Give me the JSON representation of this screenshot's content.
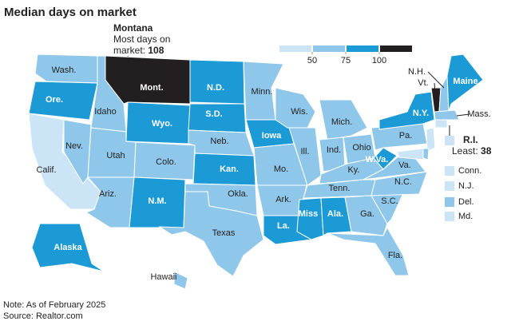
{
  "title": "Median days on market",
  "legend": {
    "breaks": [
      50,
      75,
      100
    ],
    "colors": [
      "#cbe5f6",
      "#8fc7ea",
      "#1b9ad6",
      "#231f20"
    ]
  },
  "most": {
    "state": "Montana",
    "text": [
      "Most days on",
      "market:"
    ],
    "value": 108
  },
  "least": {
    "state": "R.I.",
    "text": "Least:",
    "value": 38
  },
  "states": [
    {
      "label": "Wash.",
      "color": "#8fc7ea"
    },
    {
      "label": "Ore.",
      "color": "#1b9ad6"
    },
    {
      "label": "Calif.",
      "color": "#cbe5f6"
    },
    {
      "label": "Nev.",
      "color": "#8fc7ea"
    },
    {
      "label": "Idaho",
      "color": "#8fc7ea"
    },
    {
      "label": "Mont.",
      "color": "#231f20"
    },
    {
      "label": "Wyo.",
      "color": "#1b9ad6"
    },
    {
      "label": "Utah",
      "color": "#8fc7ea"
    },
    {
      "label": "Ariz.",
      "color": "#8fc7ea"
    },
    {
      "label": "Colo.",
      "color": "#8fc7ea"
    },
    {
      "label": "N.M.",
      "color": "#1b9ad6"
    },
    {
      "label": "N.D.",
      "color": "#1b9ad6"
    },
    {
      "label": "S.D.",
      "color": "#1b9ad6"
    },
    {
      "label": "Neb.",
      "color": "#8fc7ea"
    },
    {
      "label": "Kan.",
      "color": "#1b9ad6"
    },
    {
      "label": "Okla.",
      "color": "#8fc7ea"
    },
    {
      "label": "Texas",
      "color": "#8fc7ea"
    },
    {
      "label": "Minn.",
      "color": "#8fc7ea"
    },
    {
      "label": "Iowa",
      "color": "#1b9ad6"
    },
    {
      "label": "Mo.",
      "color": "#8fc7ea"
    },
    {
      "label": "Ark.",
      "color": "#8fc7ea"
    },
    {
      "label": "La.",
      "color": "#1b9ad6"
    },
    {
      "label": "Wis.",
      "color": "#8fc7ea"
    },
    {
      "label": "Ill.",
      "color": "#8fc7ea"
    },
    {
      "label": "Mich.",
      "color": "#8fc7ea"
    },
    {
      "label": "Ind.",
      "color": "#8fc7ea"
    },
    {
      "label": "Ohio",
      "color": "#8fc7ea"
    },
    {
      "label": "Ky.",
      "color": "#8fc7ea"
    },
    {
      "label": "Tenn.",
      "color": "#8fc7ea"
    },
    {
      "label": "Miss",
      "color": "#1b9ad6"
    },
    {
      "label": "Ala.",
      "color": "#1b9ad6"
    },
    {
      "label": "Ga.",
      "color": "#8fc7ea"
    },
    {
      "label": "Fla.",
      "color": "#8fc7ea"
    },
    {
      "label": "S.C.",
      "color": "#8fc7ea"
    },
    {
      "label": "N.C.",
      "color": "#8fc7ea"
    },
    {
      "label": "Va.",
      "color": "#8fc7ea"
    },
    {
      "label": "W.Va.",
      "color": "#1b9ad6"
    },
    {
      "label": "Pa.",
      "color": "#8fc7ea"
    },
    {
      "label": "N.Y.",
      "color": "#1b9ad6"
    },
    {
      "label": "Vt.",
      "color": "#231f20"
    },
    {
      "label": "N.H.",
      "color": "#8fc7ea"
    },
    {
      "label": "Maine",
      "color": "#1b9ad6"
    },
    {
      "label": "Mass.",
      "color": "#8fc7ea"
    },
    {
      "label": "Conn.",
      "color": "#cbe5f6"
    },
    {
      "label": "N.J.",
      "color": "#cbe5f6"
    },
    {
      "label": "Del.",
      "color": "#8fc7ea"
    },
    {
      "label": "Md.",
      "color": "#cbe5f6"
    },
    {
      "label": "Alaska",
      "color": "#1b9ad6"
    },
    {
      "label": "Hawaii",
      "color": "#8fc7ea"
    }
  ],
  "notes": [
    "Note: As of February 2025",
    "Source: Realtor.com"
  ]
}
